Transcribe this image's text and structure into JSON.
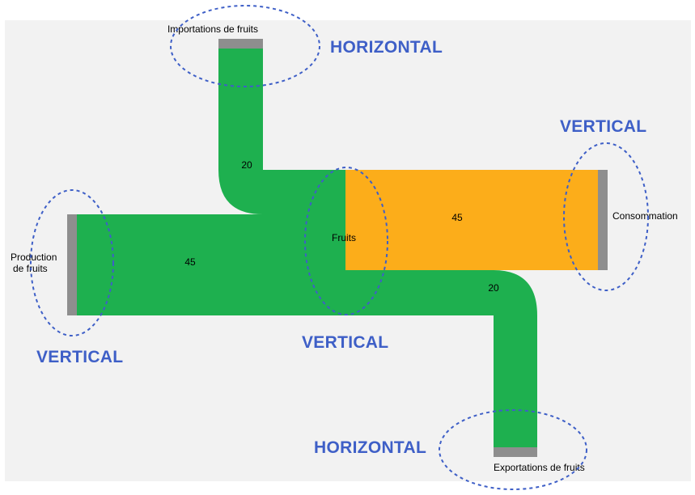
{
  "diagram": {
    "type": "sankey",
    "nodes": {
      "imports": "Importations de fruits",
      "production_line1": "Production",
      "production_line2": "de fruits",
      "fruits": "Fruits",
      "consumption": "Consommation",
      "exports": "Exportations de fruits"
    },
    "flows": [
      {
        "from": "Importations de fruits",
        "to": "Fruits",
        "value": 20
      },
      {
        "from": "Production de fruits",
        "to": "Fruits",
        "value": 45
      },
      {
        "from": "Fruits",
        "to": "Consommation",
        "value": 45
      },
      {
        "from": "Fruits",
        "to": "Exportations de fruits",
        "value": 20
      }
    ],
    "flow_labels": {
      "imports": "20",
      "production": "45",
      "consumption": "45",
      "exports": "20"
    },
    "annotations": {
      "top": "HORIZONTAL",
      "right": "VERTICAL",
      "left": "VERTICAL",
      "center": "VERTICAL",
      "bottom": "HORIZONTAL"
    },
    "colors": {
      "green_flow": "#1eb04f",
      "orange_flow": "#fcad1a",
      "node_bar": "#8e8e8e",
      "panel": "#f2f2f2",
      "annotation": "#3e5fc7"
    }
  }
}
